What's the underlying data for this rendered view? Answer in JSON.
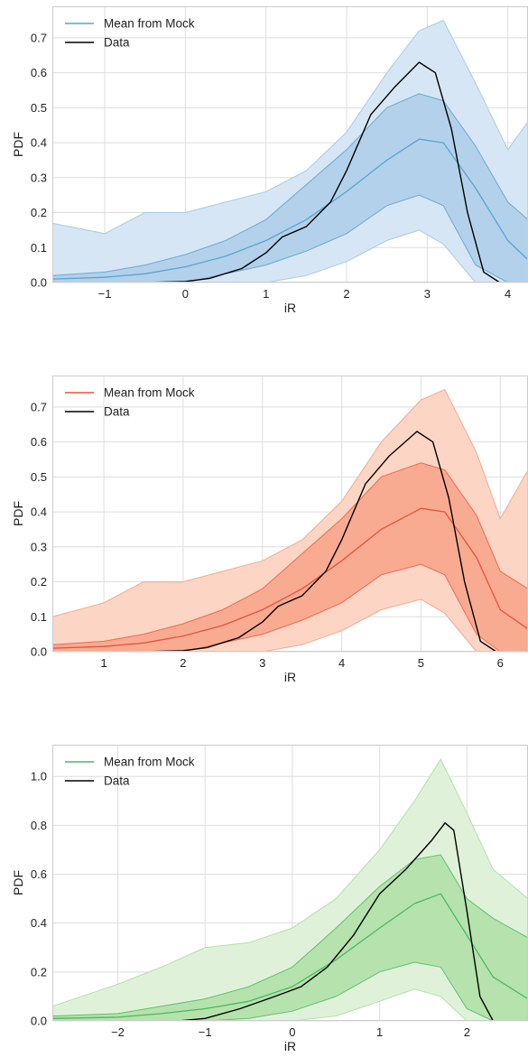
{
  "chart_data": [
    {
      "type": "area",
      "xlabel": "iR",
      "ylabel": "PDF",
      "xlim": [
        -1.65,
        4.25
      ],
      "ylim": [
        0.0,
        0.79
      ],
      "xticks": [
        -1,
        0,
        1,
        2,
        3,
        4
      ],
      "yticks": [
        0.0,
        0.1,
        0.2,
        0.3,
        0.4,
        0.5,
        0.6,
        0.7
      ],
      "grid": true,
      "legend_position": "top-left",
      "colors": {
        "line": "#5ba3d0",
        "outer": "#d7e6f4",
        "outer_edge": "#a9cbe6",
        "inner": "#b3d1ea",
        "inner_edge": "#6aaad5"
      },
      "series": [
        {
          "name": "Mean from Mock",
          "role": "mean",
          "x": [
            -1.65,
            -1.0,
            -0.5,
            0.0,
            0.5,
            1.0,
            1.5,
            2.0,
            2.5,
            2.9,
            3.2,
            3.6,
            4.0,
            4.25
          ],
          "y": [
            0.01,
            0.015,
            0.025,
            0.045,
            0.075,
            0.12,
            0.18,
            0.26,
            0.35,
            0.41,
            0.4,
            0.27,
            0.12,
            0.065
          ]
        },
        {
          "name": "Data",
          "role": "data",
          "x": [
            -1.65,
            -0.5,
            0.0,
            0.3,
            0.7,
            1.0,
            1.2,
            1.5,
            1.8,
            2.0,
            2.3,
            2.6,
            2.9,
            3.1,
            3.3,
            3.5,
            3.7,
            3.9,
            4.25
          ],
          "y": [
            0.0,
            0.0,
            0.003,
            0.012,
            0.04,
            0.085,
            0.13,
            0.16,
            0.23,
            0.32,
            0.48,
            0.56,
            0.63,
            0.6,
            0.44,
            0.2,
            0.03,
            0.0,
            0.0
          ]
        }
      ],
      "bands": {
        "x": [
          -1.65,
          -1.0,
          -0.5,
          0.0,
          0.5,
          1.0,
          1.5,
          2.0,
          2.5,
          2.9,
          3.2,
          3.6,
          4.0,
          4.25
        ],
        "inner_lower": [
          0.0,
          0.0,
          0.0,
          0.0,
          0.025,
          0.05,
          0.09,
          0.14,
          0.22,
          0.25,
          0.22,
          0.05,
          0.0,
          0.0
        ],
        "inner_upper": [
          0.02,
          0.03,
          0.05,
          0.08,
          0.12,
          0.18,
          0.28,
          0.38,
          0.5,
          0.54,
          0.52,
          0.39,
          0.23,
          0.18
        ],
        "outer_lower": [
          0.0,
          0.0,
          0.0,
          0.0,
          0.0,
          0.0,
          0.02,
          0.06,
          0.12,
          0.15,
          0.11,
          0.0,
          0.0,
          0.0
        ],
        "outer_upper": [
          0.17,
          0.14,
          0.2,
          0.2,
          0.23,
          0.26,
          0.32,
          0.43,
          0.6,
          0.72,
          0.75,
          0.57,
          0.38,
          0.46
        ]
      }
    },
    {
      "type": "area",
      "xlabel": "iR",
      "ylabel": "PDF",
      "xlim": [
        0.35,
        6.35
      ],
      "ylim": [
        0.0,
        0.79
      ],
      "xticks": [
        1,
        2,
        3,
        4,
        5,
        6
      ],
      "yticks": [
        0.0,
        0.1,
        0.2,
        0.3,
        0.4,
        0.5,
        0.6,
        0.7
      ],
      "grid": true,
      "legend_position": "top-left",
      "colors": {
        "line": "#e8523c",
        "outer": "#fdd5c5",
        "outer_edge": "#f7a98e",
        "inner": "#f9ab92",
        "inner_edge": "#f06a4f"
      },
      "series": [
        {
          "name": "Mean from Mock",
          "role": "mean",
          "x": [
            0.35,
            1.0,
            1.5,
            2.0,
            2.5,
            3.0,
            3.5,
            4.0,
            4.5,
            5.0,
            5.3,
            5.7,
            6.0,
            6.35
          ],
          "y": [
            0.01,
            0.015,
            0.025,
            0.045,
            0.075,
            0.12,
            0.18,
            0.26,
            0.35,
            0.41,
            0.4,
            0.27,
            0.12,
            0.065
          ]
        },
        {
          "name": "Data",
          "role": "data",
          "x": [
            0.35,
            1.5,
            2.0,
            2.3,
            2.7,
            3.0,
            3.2,
            3.5,
            3.8,
            4.0,
            4.3,
            4.6,
            4.95,
            5.15,
            5.35,
            5.55,
            5.75,
            5.95,
            6.35
          ],
          "y": [
            0.0,
            0.0,
            0.003,
            0.012,
            0.04,
            0.085,
            0.13,
            0.16,
            0.23,
            0.32,
            0.48,
            0.56,
            0.63,
            0.6,
            0.44,
            0.2,
            0.03,
            0.0,
            0.0
          ]
        }
      ],
      "bands": {
        "x": [
          0.35,
          1.0,
          1.5,
          2.0,
          2.5,
          3.0,
          3.5,
          4.0,
          4.5,
          5.0,
          5.3,
          5.7,
          6.0,
          6.35
        ],
        "inner_lower": [
          0.0,
          0.0,
          0.0,
          0.0,
          0.025,
          0.05,
          0.09,
          0.14,
          0.22,
          0.25,
          0.22,
          0.05,
          0.0,
          0.0
        ],
        "inner_upper": [
          0.02,
          0.03,
          0.05,
          0.08,
          0.12,
          0.18,
          0.28,
          0.38,
          0.5,
          0.54,
          0.52,
          0.39,
          0.23,
          0.18
        ],
        "outer_lower": [
          0.0,
          0.0,
          0.0,
          0.0,
          0.0,
          0.0,
          0.02,
          0.06,
          0.12,
          0.15,
          0.11,
          0.0,
          0.0,
          0.0
        ],
        "outer_upper": [
          0.1,
          0.14,
          0.2,
          0.2,
          0.23,
          0.26,
          0.32,
          0.43,
          0.6,
          0.72,
          0.75,
          0.57,
          0.38,
          0.52
        ]
      }
    },
    {
      "type": "area",
      "xlabel": "iR",
      "ylabel": "PDF",
      "xlim": [
        -2.75,
        2.7
      ],
      "ylim": [
        0.0,
        1.13
      ],
      "xticks": [
        -2,
        -1,
        0,
        1,
        2
      ],
      "yticks": [
        0.0,
        0.2,
        0.4,
        0.6,
        0.8,
        1.0
      ],
      "grid": true,
      "legend_position": "top-left",
      "colors": {
        "line": "#4db863",
        "outer": "#dff2d9",
        "outer_edge": "#b3e0ab",
        "inner": "#b5e2ad",
        "inner_edge": "#62c06f"
      },
      "series": [
        {
          "name": "Mean from Mock",
          "role": "mean",
          "x": [
            -2.75,
            -2.0,
            -1.5,
            -1.0,
            -0.5,
            0.0,
            0.5,
            1.0,
            1.4,
            1.7,
            2.0,
            2.3,
            2.7
          ],
          "y": [
            0.01,
            0.015,
            0.03,
            0.05,
            0.08,
            0.14,
            0.25,
            0.38,
            0.48,
            0.52,
            0.35,
            0.18,
            0.09
          ]
        },
        {
          "name": "Data",
          "role": "data",
          "x": [
            -2.75,
            -1.3,
            -1.0,
            -0.6,
            -0.2,
            0.1,
            0.4,
            0.7,
            1.0,
            1.3,
            1.6,
            1.75,
            1.85,
            2.0,
            2.15,
            2.3,
            2.7
          ],
          "y": [
            0.0,
            0.0,
            0.01,
            0.05,
            0.1,
            0.14,
            0.22,
            0.35,
            0.52,
            0.62,
            0.74,
            0.81,
            0.78,
            0.45,
            0.1,
            0.0,
            0.0
          ]
        }
      ],
      "bands": {
        "x": [
          -2.75,
          -2.0,
          -1.5,
          -1.0,
          -0.5,
          0.0,
          0.5,
          1.0,
          1.4,
          1.7,
          2.0,
          2.3,
          2.7
        ],
        "inner_lower": [
          0.0,
          0.0,
          0.0,
          0.0,
          0.01,
          0.04,
          0.1,
          0.2,
          0.24,
          0.22,
          0.05,
          0.0,
          0.0
        ],
        "inner_upper": [
          0.02,
          0.03,
          0.06,
          0.09,
          0.14,
          0.22,
          0.38,
          0.55,
          0.66,
          0.68,
          0.5,
          0.42,
          0.34
        ],
        "outer_lower": [
          0.0,
          0.0,
          0.0,
          0.0,
          0.0,
          0.0,
          0.02,
          0.08,
          0.13,
          0.1,
          0.0,
          0.0,
          0.0
        ],
        "outer_upper": [
          0.06,
          0.15,
          0.22,
          0.3,
          0.32,
          0.38,
          0.5,
          0.7,
          0.9,
          1.07,
          0.85,
          0.62,
          0.5
        ]
      }
    }
  ]
}
